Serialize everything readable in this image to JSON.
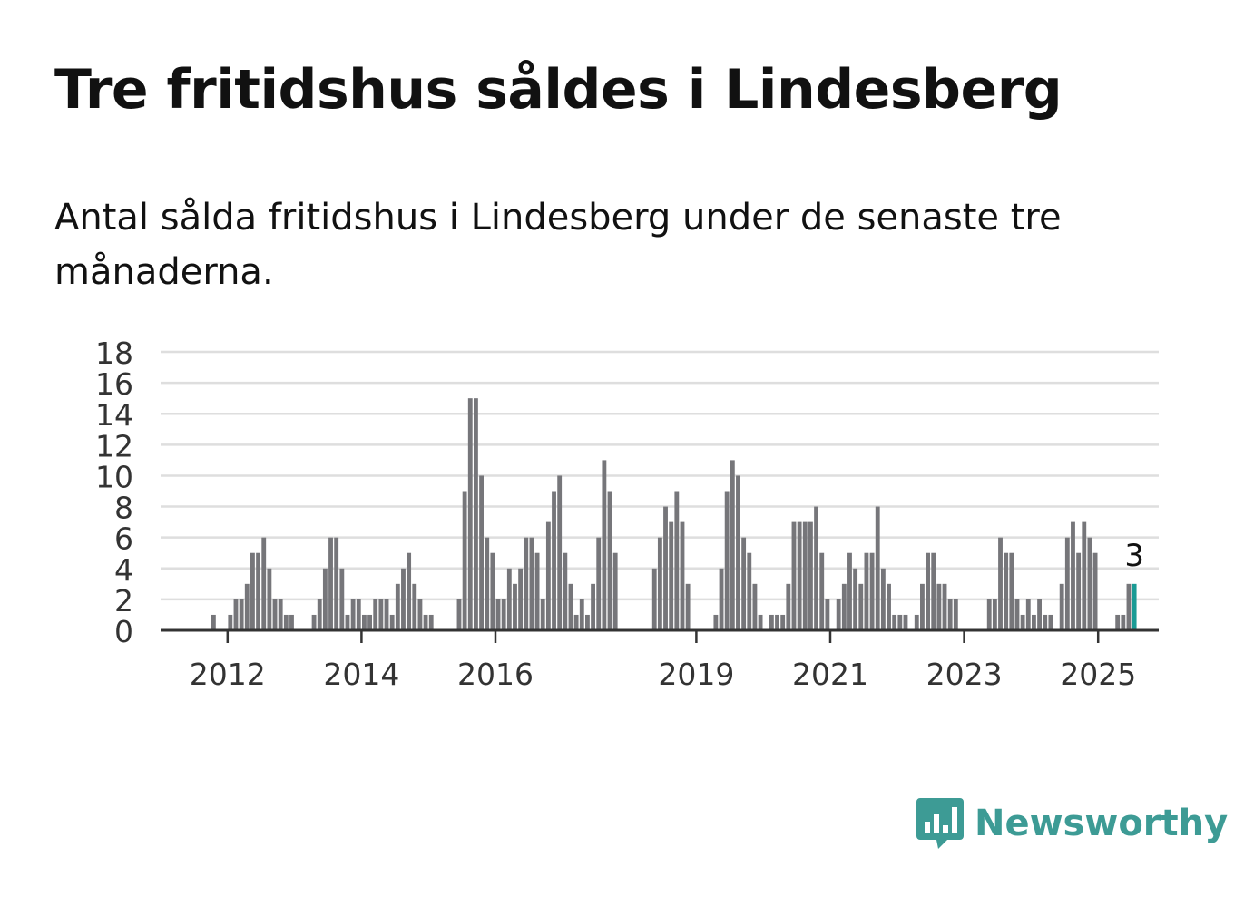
{
  "header": {
    "title": "Tre fritidshus såldes i Lindesberg",
    "subtitle": "Antal sålda fritidshus i Lindesberg under de senaste tre månaderna."
  },
  "brand": {
    "name": "Newsworthy",
    "color": "#3d9b95",
    "icon": "newsworthy-logo-icon"
  },
  "chart_data": {
    "type": "bar",
    "title": "",
    "xlabel": "",
    "ylabel": "",
    "ylim": [
      0,
      18
    ],
    "yticks": [
      0,
      2,
      4,
      6,
      8,
      10,
      12,
      14,
      16,
      18
    ],
    "xticks": [
      2012,
      2014,
      2016,
      2019,
      2021,
      2023,
      2025
    ],
    "grid": true,
    "bar_color": "#76767a",
    "highlight_color": "#1a9b95",
    "start": "2011-01",
    "end": "2025-05",
    "values": [
      0,
      0,
      0,
      0,
      0,
      0,
      0,
      0,
      0,
      1,
      0,
      0,
      1,
      2,
      2,
      3,
      5,
      5,
      6,
      4,
      2,
      2,
      1,
      1,
      0,
      0,
      0,
      1,
      2,
      4,
      6,
      6,
      4,
      1,
      2,
      2,
      1,
      1,
      2,
      2,
      2,
      1,
      3,
      4,
      5,
      3,
      2,
      1,
      1,
      0,
      0,
      0,
      0,
      2,
      9,
      15,
      15,
      10,
      6,
      5,
      2,
      2,
      4,
      3,
      4,
      6,
      6,
      5,
      2,
      7,
      9,
      10,
      5,
      3,
      1,
      2,
      1,
      3,
      6,
      11,
      9,
      5,
      0,
      0,
      0,
      0,
      0,
      0,
      4,
      6,
      8,
      7,
      9,
      7,
      3,
      0,
      0,
      0,
      0,
      1,
      4,
      9,
      11,
      10,
      6,
      5,
      3,
      1,
      0,
      1,
      1,
      1,
      3,
      7,
      7,
      7,
      7,
      8,
      5,
      2,
      0,
      2,
      3,
      5,
      4,
      3,
      5,
      5,
      8,
      4,
      3,
      1,
      1,
      1,
      0,
      1,
      3,
      5,
      5,
      3,
      3,
      2,
      2,
      0,
      0,
      0,
      0,
      0,
      2,
      2,
      6,
      5,
      5,
      2,
      1,
      2,
      1,
      2,
      1,
      1,
      0,
      3,
      6,
      7,
      5,
      7,
      6,
      5,
      0,
      0,
      0,
      1,
      1,
      3,
      3
    ],
    "highlight_label": "3"
  }
}
